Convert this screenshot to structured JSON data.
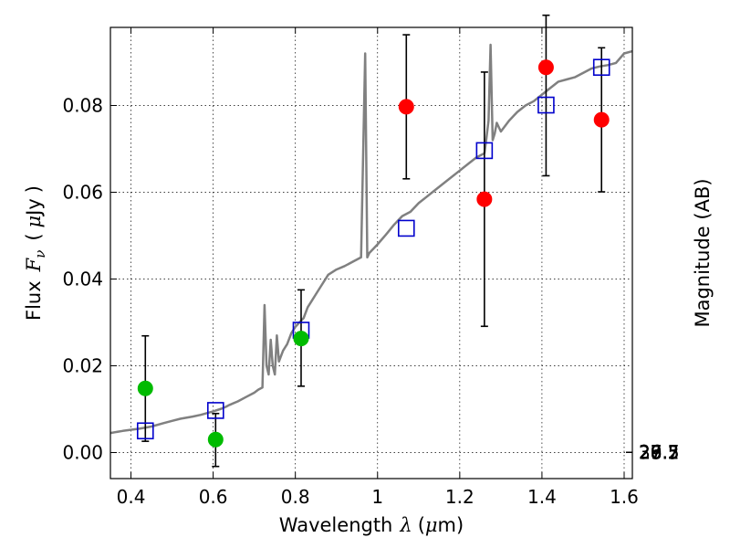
{
  "chart_data": {
    "type": "scatter",
    "xlabel_parts": [
      "Wavelength",
      "λ",
      "(",
      "μ",
      "m)"
    ],
    "ylabel_parts": [
      "Flux",
      "F",
      "ν",
      "(",
      "μ",
      "Jy",
      ")"
    ],
    "ylabel_right": "Magnitude (AB)",
    "xlim": [
      0.35,
      1.62
    ],
    "ylim": [
      -0.006,
      0.098
    ],
    "grid": true,
    "x_ticks": [
      {
        "value": 0.4,
        "label": "0.4"
      },
      {
        "value": 0.6,
        "label": "0.6"
      },
      {
        "value": 0.8,
        "label": "0.8"
      },
      {
        "value": 1.0,
        "label": "1"
      },
      {
        "value": 1.2,
        "label": "1.2"
      },
      {
        "value": 1.4,
        "label": "1.4"
      },
      {
        "value": 1.6,
        "label": "1.6"
      }
    ],
    "y_ticks": [
      {
        "value": 0.0,
        "label": "0.00"
      },
      {
        "value": 0.02,
        "label": "0.02"
      },
      {
        "value": 0.04,
        "label": "0.04"
      },
      {
        "value": 0.06,
        "label": "0.06"
      },
      {
        "value": 0.08,
        "label": "0.08"
      }
    ],
    "mag_ticks": [
      {
        "value": 26.5,
        "label": "26.5"
      },
      {
        "value": 26.7,
        "label": "26.7"
      },
      {
        "value": 27.0,
        "label": "27"
      },
      {
        "value": 27.2,
        "label": "27.2"
      },
      {
        "value": 27.5,
        "label": "27.5"
      },
      {
        "value": 28.0,
        "label": "28"
      },
      {
        "value": 28.5,
        "label": "28.5"
      },
      {
        "value": 29.0,
        "label": "29"
      },
      {
        "value": 30.0,
        "label": "30"
      }
    ],
    "colors": {
      "spectrum": "#808080",
      "model": "#0000cc",
      "optical": "#00bb00",
      "infrared": "#ff0000",
      "errorbar": "#000000",
      "grid": "#000000"
    },
    "series": [
      {
        "kind": "model-photometry",
        "marker": "open-square",
        "x": [
          0.435,
          0.606,
          0.814,
          1.07,
          1.26,
          1.41,
          1.545
        ],
        "y": [
          0.005,
          0.0097,
          0.0282,
          0.0517,
          0.0696,
          0.0801,
          0.0888
        ]
      },
      {
        "kind": "optical-photometry",
        "marker": "circle",
        "x": [
          0.435,
          0.606,
          0.814
        ],
        "y": [
          0.0148,
          0.003,
          0.0263
        ],
        "yerr_low": [
          0.0122,
          0.0062,
          0.011
        ],
        "yerr_high": [
          0.0121,
          0.006,
          0.0112
        ]
      },
      {
        "kind": "infrared-photometry",
        "marker": "circle",
        "x": [
          1.07,
          1.26,
          1.41,
          1.545
        ],
        "y": [
          0.0797,
          0.0584,
          0.0888,
          0.0767
        ],
        "yerr_low": [
          0.0166,
          0.0293,
          0.025,
          0.0166
        ],
        "yerr_high": [
          0.0166,
          0.0293,
          0.012,
          0.0166
        ]
      },
      {
        "kind": "spectrum",
        "x": [
          0.35,
          0.38,
          0.42,
          0.45,
          0.48,
          0.5,
          0.52,
          0.55,
          0.57,
          0.6,
          0.62,
          0.63,
          0.64,
          0.66,
          0.68,
          0.7,
          0.71,
          0.72,
          0.725,
          0.73,
          0.735,
          0.74,
          0.745,
          0.75,
          0.755,
          0.76,
          0.77,
          0.78,
          0.79,
          0.8,
          0.81,
          0.82,
          0.83,
          0.84,
          0.85,
          0.86,
          0.88,
          0.9,
          0.92,
          0.94,
          0.95,
          0.96,
          0.97,
          0.975,
          0.98,
          0.99,
          1.0,
          1.02,
          1.04,
          1.06,
          1.08,
          1.1,
          1.12,
          1.14,
          1.16,
          1.18,
          1.2,
          1.22,
          1.24,
          1.26,
          1.265,
          1.27,
          1.275,
          1.28,
          1.285,
          1.29,
          1.3,
          1.32,
          1.34,
          1.36,
          1.38,
          1.4,
          1.42,
          1.44,
          1.46,
          1.48,
          1.5,
          1.52,
          1.54,
          1.56,
          1.58,
          1.6,
          1.62
        ],
        "y": [
          0.0045,
          0.005,
          0.0055,
          0.006,
          0.0068,
          0.0073,
          0.0078,
          0.0083,
          0.0087,
          0.0095,
          0.0101,
          0.0105,
          0.011,
          0.0118,
          0.0128,
          0.0138,
          0.0145,
          0.015,
          0.034,
          0.02,
          0.018,
          0.026,
          0.02,
          0.018,
          0.027,
          0.021,
          0.0235,
          0.025,
          0.0275,
          0.029,
          0.03,
          0.031,
          0.0335,
          0.035,
          0.0365,
          0.038,
          0.041,
          0.0422,
          0.043,
          0.044,
          0.0445,
          0.045,
          0.092,
          0.045,
          0.046,
          0.047,
          0.048,
          0.0502,
          0.0525,
          0.0545,
          0.0555,
          0.0575,
          0.059,
          0.0605,
          0.062,
          0.0635,
          0.065,
          0.0665,
          0.068,
          0.069,
          0.0725,
          0.0765,
          0.094,
          0.072,
          0.0735,
          0.076,
          0.074,
          0.0765,
          0.0785,
          0.08,
          0.081,
          0.0825,
          0.084,
          0.0855,
          0.086,
          0.0865,
          0.0875,
          0.0885,
          0.089,
          0.0893,
          0.0898,
          0.092,
          0.0925
        ]
      }
    ]
  }
}
